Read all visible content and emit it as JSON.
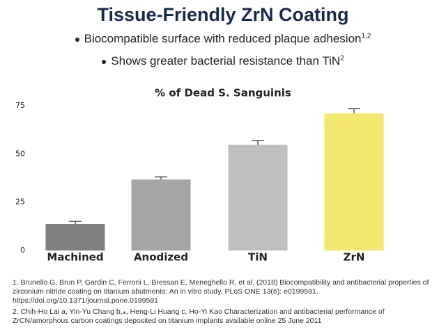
{
  "header": {
    "title": "Tissue-Friendly ZrN Coating"
  },
  "bullets": [
    {
      "text": "Biocompatible surface with reduced plaque adhesion",
      "citation": "1,2"
    },
    {
      "text": "Shows greater bacterial resistance than TiN",
      "citation": "2"
    }
  ],
  "chart_data": {
    "type": "bar",
    "title": "% of Dead S. Sanguinis",
    "categories": [
      "Machined",
      "Anodized",
      "TiN",
      "ZrN"
    ],
    "values": [
      13.7,
      36.8,
      54.8,
      71
    ],
    "errors": [
      1.4,
      1.4,
      2.2,
      2.5
    ],
    "colors": [
      "#7f7f7f",
      "#a5a5a5",
      "#bfbfbf",
      "#f2e86d"
    ],
    "ylim": [
      0,
      75
    ],
    "yticks": [
      0,
      25,
      50,
      75
    ],
    "grid": false
  },
  "references": [
    "1. Brunello G, Brun P, Gardin C, Ferroni L, Bressan E, Meneghello R, et al. (2018) Biocompatibility and antibacterial properties of zirconium nitride coating on titanium abutments: An in vitro study. PLoS ONE 13(6): e0199591. https://doi.org/10.1371/journal.pone.0199591",
    "2. Chih-Ho Lai a, Yin-Yu Chang b,⁎, Heng-Li Huang c, Ho-Yi Kao Characterization and antibacterial performance of ZrCN/amorphous carbon coatings deposited on titanium implants available online 25 June 2011"
  ]
}
